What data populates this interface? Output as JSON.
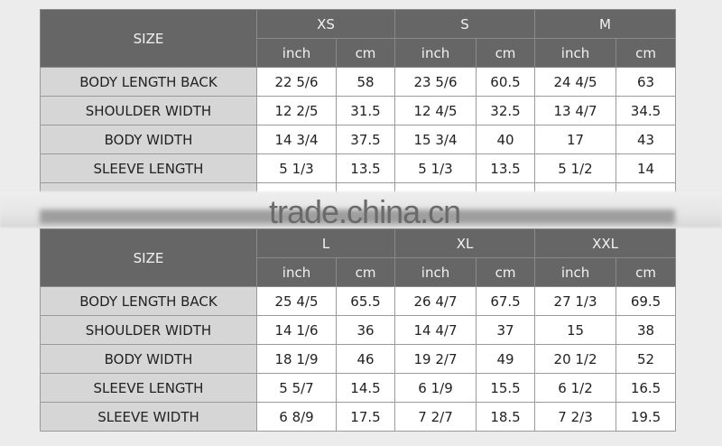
{
  "watermark": "trade.china.cn",
  "colors": {
    "header_bg": "#666666",
    "label_bg": "#d6d6d6",
    "cell_bg": "#ffffff",
    "page_bg": "#ececec"
  },
  "top_table": {
    "size_label": "SIZE",
    "sizes": [
      "XS",
      "S",
      "M"
    ],
    "units": [
      "inch",
      "cm",
      "inch",
      "cm",
      "inch",
      "cm"
    ],
    "rows": [
      {
        "label": "BODY LENGTH BACK",
        "values": [
          "22 5/6",
          "58",
          "23 5/6",
          "60.5",
          "24 4/5",
          "63"
        ]
      },
      {
        "label": "SHOULDER WIDTH",
        "values": [
          "12 2/5",
          "31.5",
          "12 4/5",
          "32.5",
          "13 4/7",
          "34.5"
        ]
      },
      {
        "label": "BODY WIDTH",
        "values": [
          "14 3/4",
          "37.5",
          "15 3/4",
          "40",
          "17",
          "43"
        ]
      },
      {
        "label": "SLEEVE LENGTH",
        "values": [
          "5 1/3",
          "13.5",
          "5 1/3",
          "13.5",
          "5 1/2",
          "14"
        ]
      }
    ]
  },
  "bottom_table": {
    "size_label": "SIZE",
    "sizes": [
      "L",
      "XL",
      "XXL"
    ],
    "units": [
      "inch",
      "cm",
      "inch",
      "cm",
      "inch",
      "cm"
    ],
    "rows": [
      {
        "label": "BODY LENGTH BACK",
        "values": [
          "25 4/5",
          "65.5",
          "26 4/7",
          "67.5",
          "27 1/3",
          "69.5"
        ]
      },
      {
        "label": "SHOULDER WIDTH",
        "values": [
          "14 1/6",
          "36",
          "14 4/7",
          "37",
          "15",
          "38"
        ]
      },
      {
        "label": "BODY WIDTH",
        "values": [
          "18 1/9",
          "46",
          "19 2/7",
          "49",
          "20 1/2",
          "52"
        ]
      },
      {
        "label": "SLEEVE LENGTH",
        "values": [
          "5 5/7",
          "14.5",
          "6 1/9",
          "15.5",
          "6 1/2",
          "16.5"
        ]
      },
      {
        "label": "SLEEVE WIDTH",
        "values": [
          "6 8/9",
          "17.5",
          "7 2/7",
          "18.5",
          "7 2/3",
          "19.5"
        ]
      }
    ]
  }
}
